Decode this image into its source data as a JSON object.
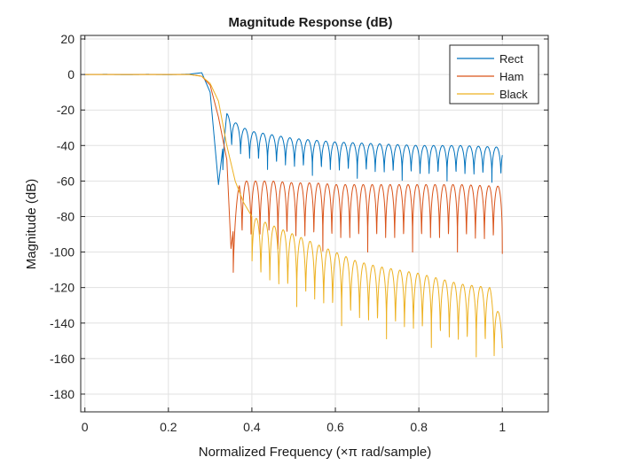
{
  "chart_data": {
    "type": "line",
    "title": "Magnitude Response (dB)",
    "xlabel": "Normalized Frequency (×π rad/sample)",
    "ylabel": "Magnitude (dB)",
    "xlim": [
      -0.01,
      1.11
    ],
    "ylim": [
      -190,
      22
    ],
    "xticks": [
      0,
      0.2,
      0.4,
      0.6,
      0.8,
      1
    ],
    "xtick_labels": [
      "0",
      "0.2",
      "0.4",
      "0.6",
      "0.8",
      "1"
    ],
    "yticks": [
      20,
      0,
      -20,
      -40,
      -60,
      -80,
      -100,
      -120,
      -140,
      -160,
      -180
    ],
    "ytick_labels": [
      "20",
      "0",
      "-20",
      "-40",
      "-60",
      "-80",
      "-100",
      "-120",
      "-140",
      "-160",
      "-180"
    ],
    "grid": true,
    "legend_position": "top-right",
    "series": [
      {
        "name": "Rect",
        "color": "#0072BD",
        "x": [
          0,
          0.05,
          0.1,
          0.15,
          0.2,
          0.25,
          0.28,
          0.3,
          0.32,
          0.34,
          0.36,
          0.38,
          0.4,
          0.45,
          0.5,
          0.55,
          0.6,
          0.7,
          0.8,
          0.9,
          1.0
        ],
        "y": [
          0,
          0.1,
          -0.1,
          0.1,
          -0.1,
          0.2,
          1,
          -10,
          -62,
          -22,
          -27,
          -30,
          -32,
          -34,
          -36,
          -37,
          -38,
          -39,
          -40,
          -40,
          -41
        ],
        "null_depth_dB": 20
      },
      {
        "name": "Ham",
        "color": "#D95319",
        "x": [
          0,
          0.05,
          0.1,
          0.15,
          0.2,
          0.25,
          0.28,
          0.3,
          0.32,
          0.34,
          0.35,
          0.37,
          0.4,
          0.45,
          0.5,
          0.55,
          0.6,
          0.7,
          0.8,
          0.9,
          1.0
        ],
        "y": [
          0,
          0,
          0,
          0,
          0,
          0,
          -1,
          -6,
          -24,
          -48,
          -98,
          -60,
          -60,
          -60,
          -61,
          -61,
          -62,
          -62,
          -62,
          -62,
          -63
        ],
        "null_depth_dB": 38
      },
      {
        "name": "Black",
        "color": "#EDB120",
        "x": [
          0,
          0.05,
          0.1,
          0.15,
          0.2,
          0.25,
          0.28,
          0.3,
          0.32,
          0.34,
          0.36,
          0.38,
          0.4,
          0.45,
          0.5,
          0.55,
          0.6,
          0.65,
          0.7,
          0.8,
          0.9,
          0.97,
          1.0
        ],
        "y": [
          0,
          0,
          0,
          0,
          0,
          0,
          -1,
          -5,
          -15,
          -40,
          -60,
          -72,
          -80,
          -85,
          -90,
          -95,
          -100,
          -105,
          -108,
          -112,
          -118,
          -120,
          -140
        ],
        "null_depth_dB": 40
      }
    ]
  }
}
